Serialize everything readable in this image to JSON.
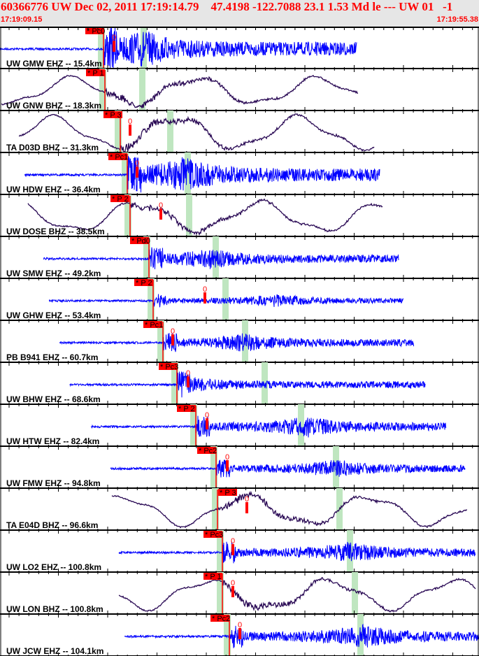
{
  "header": {
    "title": "60366776 UW Dec 02, 2011 17:19:14.79    47.4198 -122.7088 23.1 1.53 Md le --- UW 01   -1",
    "start_time": "17:19:09.15",
    "end_time": "17:19:55.38"
  },
  "colors": {
    "hf": "#0000ff",
    "lp": "#2a0a55",
    "pick": "#ff0000",
    "window": "#bfe6c0"
  },
  "traces": [
    {
      "label": "UW GMW EHZ -- 15.4km",
      "pick": "* Pc0",
      "marker": "0"
    },
    {
      "label": "UW GNW BHZ -- 18.3km",
      "pick": "* P 1",
      "marker": ""
    },
    {
      "label": "TA D03D BHZ -- 31.3km",
      "pick": "* P 3",
      "marker": "0"
    },
    {
      "label": "UW HDW EHZ -- 36.4km",
      "pick": "* Pc1",
      "marker": "0"
    },
    {
      "label": "UW DOSE BHZ -- 38.5km",
      "pick": "* P 2",
      "marker": "0"
    },
    {
      "label": "UW SMW EHZ -- 49.2km",
      "pick": "* Pd0",
      "marker": ""
    },
    {
      "label": "UW GHW EHZ -- 53.4km",
      "pick": "* P 2",
      "marker": "0"
    },
    {
      "label": "PB B941 EHZ -- 60.7km",
      "pick": "* Pc1",
      "marker": "0"
    },
    {
      "label": "UW BHW EHZ -- 68.6km",
      "pick": "* Pc3",
      "marker": "0"
    },
    {
      "label": "UW HTW EHZ -- 82.4km",
      "pick": "* P 2",
      "marker": "0"
    },
    {
      "label": "UW FMW EHZ -- 94.8km",
      "pick": "* Pc2",
      "marker": "0"
    },
    {
      "label": "TA E04D BHZ -- 96.6km",
      "pick": "* P 3",
      "marker": "0"
    },
    {
      "label": "UW LO2 EHZ -- 100.8km",
      "pick": "* Pc3",
      "marker": "0"
    },
    {
      "label": "UW LON BHZ -- 100.8km",
      "pick": "* P 1",
      "marker": "0"
    },
    {
      "label": "UW JCW EHZ -- 104.1km",
      "pick": "* Pc2",
      "marker": "0"
    }
  ]
}
